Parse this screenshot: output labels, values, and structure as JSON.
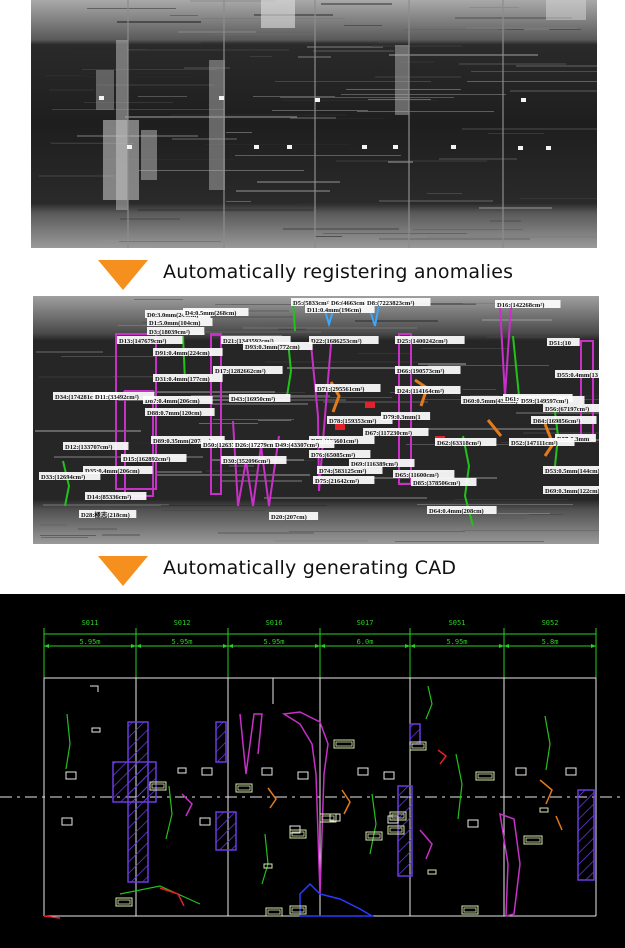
{
  "colors": {
    "arrow": "#f5901e",
    "tunnel_dark": "#161616",
    "cad_background": "#000000",
    "dimension": "#29d11f",
    "crack_green": "#22c21a",
    "region_purple": "#c830c8",
    "hatch_purple": "#6b3be0",
    "blue": "#2b3bff",
    "red": "#e4202a",
    "orange": "#e47a1a",
    "label_box": "#d8e8b0"
  },
  "steps": [
    {
      "text": "Automatically registering anomalies"
    },
    {
      "text": "Automatically generating CAD"
    }
  ],
  "panels": {
    "raw_image": {
      "icon": "tunnel-lining-photo"
    },
    "annotated_image": {
      "labels": [
        "D0:3.0mm(244cm)",
        "D4:0.5mm(268cm)",
        "D1:5.0mm(104cm)",
        "D3:(18039cm²)",
        "D5:(5833cm²)",
        "D6:(4663cm²)",
        "D8:(7223823cm²)",
        "D11:0.4mm(196cm)",
        "D16:(142268cm²)",
        "D13:(147679cm²)",
        "D21:(1343592cm²)",
        "D22:(1686253cm²)",
        "D25:(1400242cm²)",
        "D91:0.4mm(224cm)",
        "D93:0.3mm(772cm)",
        "D51:(10",
        "D17:(1282662cm²)",
        "D31:0.4mm(177cm)",
        "D66:(190573cm²)",
        "D34:(174281cm²)",
        "D71:(295561cm²)",
        "D24:(114164cm²)",
        "D55:0.4mm(13",
        "D87:0.4mm(206cm)",
        "D88:0.7mm(120cm)",
        "D43:(16950cm²)",
        "D78:(159353cm²)",
        "D79:0.3mm(1",
        "D60:0.5mm(435cm)",
        "D61:0.3mm(107cm)",
        "D59:(149597cm²)",
        "D56:(67197cm²)",
        "D84:(169856cm²)",
        "D57:0.3mm",
        "D11:(33492cm²)",
        "D12:(133707cm²)",
        "D89:0.35mm(207cm)",
        "D67:(117230cm²)",
        "D73:(136601cm²)",
        "D52:(147111cm²)",
        "D15:(162892cm²)",
        "D30:(352096cm²)",
        "D50:(12637cm²)",
        "D26:(17279cm²)",
        "D49:(43307cm²)",
        "D76:(65085cm²)",
        "D69:(116389cm²)",
        "D62:(63318cm²)",
        "D74:(583125cm²)",
        "D75:(21642cm²)",
        "D65:(11600cm²)",
        "D85:(378506cm²)",
        "D53:0.5mm(144cm)",
        "D35:0.4mm(206cm)",
        "D33:(12694cm²)",
        "D14:(85336cm²)",
        "D69:0.3mm(122cm)",
        "D28:極志(218cm)",
        "D20:(207cm)",
        "D64:0.4mm(208cm)"
      ]
    },
    "cad_drawing": {
      "sections": [
        {
          "id": "S011",
          "width": "5.95m"
        },
        {
          "id": "S012",
          "width": "5.95m"
        },
        {
          "id": "S016",
          "width": "5.95m"
        },
        {
          "id": "S017",
          "width": "6.0m"
        },
        {
          "id": "S051",
          "width": "5.95m"
        },
        {
          "id": "S052",
          "width": "5.8m"
        }
      ]
    }
  }
}
